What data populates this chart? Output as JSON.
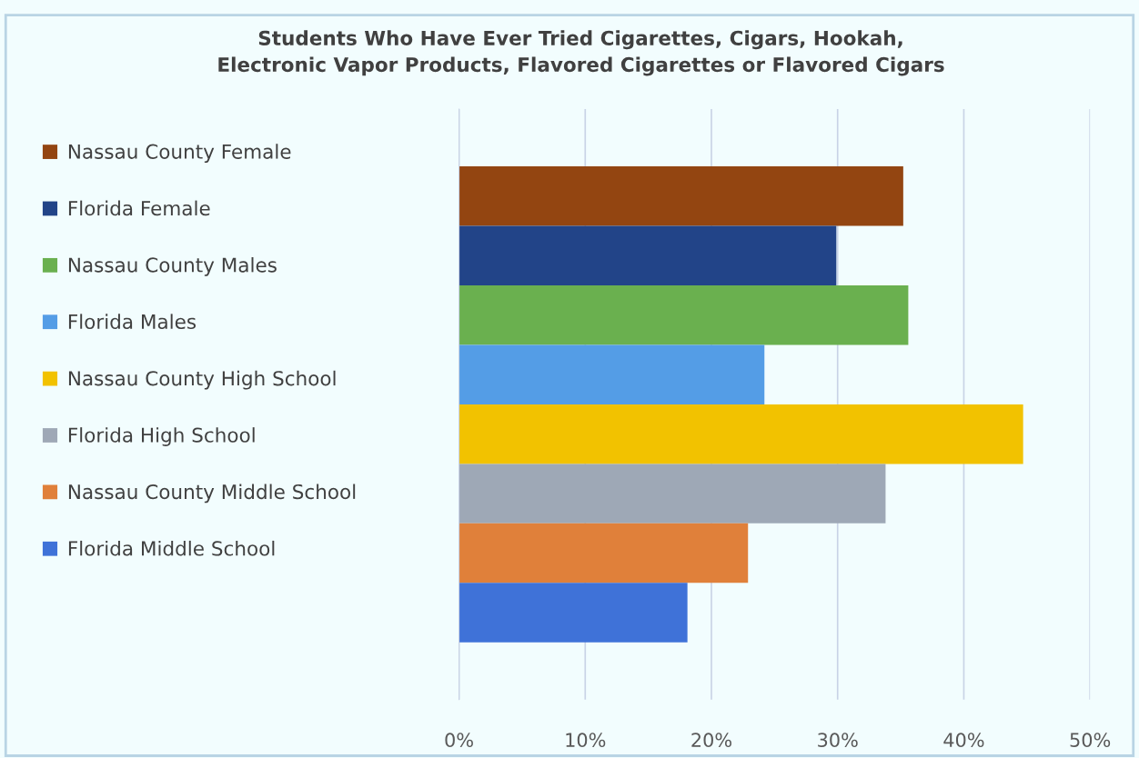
{
  "chart_data": {
    "type": "bar",
    "orientation": "horizontal",
    "title": "Students Who Have Ever Tried Cigarettes, Cigars, Hookah,\nElectronic Vapor Products, Flavored Cigarettes or Flavored Cigars",
    "categories": [
      null
    ],
    "series": [
      {
        "name": "Nassau County Female",
        "color": "#934511",
        "values": [
          35.2
        ]
      },
      {
        "name": "Florida Female",
        "color": "#224488",
        "values": [
          29.9
        ]
      },
      {
        "name": "Nassau County Males",
        "color": "#6ab04f",
        "values": [
          35.6
        ]
      },
      {
        "name": "Florida Males",
        "color": "#549de6",
        "values": [
          24.2
        ]
      },
      {
        "name": "Nassau County High School",
        "color": "#f2c200",
        "values": [
          44.7
        ]
      },
      {
        "name": "Florida High School",
        "color": "#9ea8b6",
        "values": [
          33.8
        ]
      },
      {
        "name": "Nassau County Middle School",
        "color": "#e0803a",
        "values": [
          22.9
        ]
      },
      {
        "name": "Florida Middle School",
        "color": "#3f72d8",
        "values": [
          18.1
        ]
      }
    ],
    "xlim": [
      0,
      50
    ],
    "xticks": [
      {
        "value": 0,
        "label": "0%"
      },
      {
        "value": 10,
        "label": "10%"
      },
      {
        "value": 20,
        "label": "20%"
      },
      {
        "value": 30,
        "label": "30%"
      },
      {
        "value": 40,
        "label": "40%"
      },
      {
        "value": 50,
        "label": "50%"
      }
    ],
    "grid": "x",
    "legend": "left"
  }
}
